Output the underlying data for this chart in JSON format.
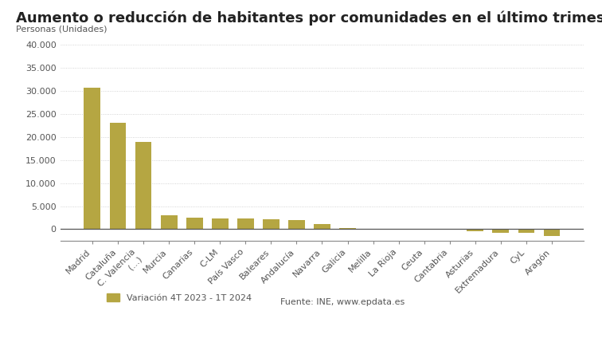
{
  "title": "Aumento o reducción de habitantes por comunidades en el último trimestre",
  "ylabel": "Personas (Unidades)",
  "categories": [
    "Madrid",
    "Cataluña",
    "C. Valencia\n(...)",
    "Murcia",
    "Canarias",
    "C-LM",
    "País Vasco",
    "Baleares",
    "Andalucía",
    "Navarra",
    "Galicia",
    "Melilla",
    "La Rioja",
    "Ceuta",
    "Cantabria",
    "Asturias",
    "Extremadura",
    "CyL",
    "Aragón"
  ],
  "values": [
    30700,
    23000,
    19000,
    3000,
    2500,
    2350,
    2300,
    2200,
    2050,
    1100,
    200,
    150,
    100,
    50,
    20,
    -400,
    -700,
    -800,
    -1500
  ],
  "bar_color": "#b5a642",
  "background_color": "#ffffff",
  "ylim": [
    -2500,
    42000
  ],
  "yticks": [
    0,
    5000,
    10000,
    15000,
    20000,
    25000,
    30000,
    35000,
    40000
  ],
  "legend_label": "Variación 4T 2023 - 1T 2024",
  "source_text": "Fuente: INE, www.epdata.es",
  "grid_color": "#c8c8c8",
  "title_fontsize": 13,
  "axis_fontsize": 8,
  "legend_fontsize": 8
}
